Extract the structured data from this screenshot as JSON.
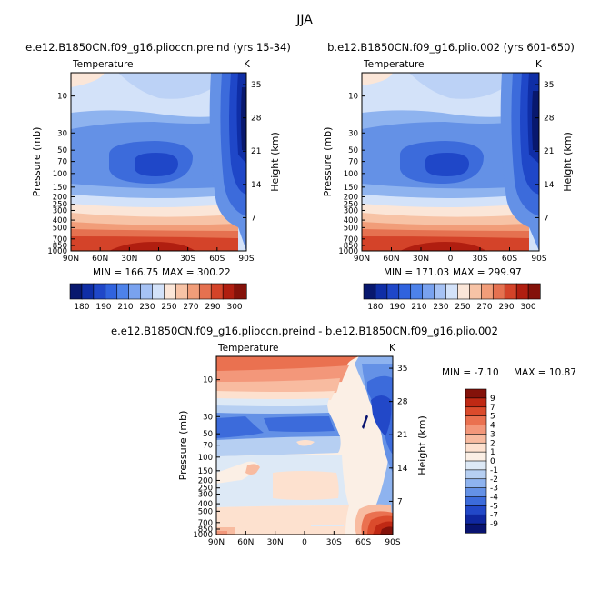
{
  "figure": {
    "season": "JJA",
    "variable": "Temperature",
    "units": "K"
  },
  "chart_data": [
    {
      "type": "heatmap",
      "id": "left",
      "title": "e.e12.B1850CN.f09_g16.plioccn.preind (yrs 15-34)",
      "variable": "Temperature",
      "units": "K",
      "ylabel": "Pressure (mb)",
      "ylabel_right": "Height (km)",
      "x_ticks": [
        "90N",
        "60N",
        "30N",
        "0",
        "30S",
        "60S",
        "90S"
      ],
      "y_ticks": [
        "10",
        "30",
        "50",
        "70",
        "100",
        "150",
        "200",
        "250",
        "300",
        "400",
        "500",
        "700",
        "850",
        "1000"
      ],
      "y_tick_values": [
        10,
        30,
        50,
        70,
        100,
        150,
        200,
        250,
        300,
        400,
        500,
        700,
        850,
        1000
      ],
      "y_ticks_right": [
        "35",
        "28",
        "21",
        "14",
        "7"
      ],
      "y_ticks_right_values": [
        35,
        28,
        21,
        14,
        7
      ],
      "ylim": [
        5,
        1000
      ],
      "xlim": [
        90,
        -90
      ],
      "min_label": "MIN = 166.75",
      "max_label": "MAX = 300.22",
      "colorbar": {
        "levels": [
          170,
          180,
          190,
          200,
          210,
          220,
          230,
          240,
          250,
          260,
          270,
          280,
          290,
          300
        ],
        "labels": [
          "180",
          "190",
          "210",
          "230",
          "250",
          "270",
          "290",
          "300"
        ],
        "colors": [
          "#08186e",
          "#0f2ea6",
          "#1f47c8",
          "#3063de",
          "#4d82ea",
          "#79a2ef",
          "#a6c2f4",
          "#d3e2f9",
          "#fbe6d8",
          "#f7c3a6",
          "#f19d79",
          "#e57150",
          "#d44329",
          "#b01e10",
          "#84120a"
        ]
      }
    },
    {
      "type": "heatmap",
      "id": "right",
      "title": "b.e12.B1850CN.f09_g16.plio.002 (yrs 601-650)",
      "variable": "Temperature",
      "units": "K",
      "ylabel": "Pressure (mb)",
      "ylabel_right": "Height (km)",
      "x_ticks": [
        "90N",
        "60N",
        "30N",
        "0",
        "30S",
        "60S",
        "90S"
      ],
      "y_ticks": [
        "10",
        "30",
        "50",
        "70",
        "100",
        "150",
        "200",
        "250",
        "300",
        "400",
        "500",
        "700",
        "850",
        "1000"
      ],
      "y_tick_values": [
        10,
        30,
        50,
        70,
        100,
        150,
        200,
        250,
        300,
        400,
        500,
        700,
        850,
        1000
      ],
      "y_ticks_right": [
        "35",
        "28",
        "21",
        "14",
        "7"
      ],
      "y_ticks_right_values": [
        35,
        28,
        21,
        14,
        7
      ],
      "ylim": [
        5,
        1000
      ],
      "xlim": [
        90,
        -90
      ],
      "min_label": "MIN = 171.03",
      "max_label": "MAX = 299.97",
      "colorbar": {
        "levels": [
          170,
          180,
          190,
          200,
          210,
          220,
          230,
          240,
          250,
          260,
          270,
          280,
          290,
          300
        ],
        "labels": [
          "180",
          "190",
          "210",
          "230",
          "250",
          "270",
          "290",
          "300"
        ],
        "colors": [
          "#08186e",
          "#0f2ea6",
          "#1f47c8",
          "#3063de",
          "#4d82ea",
          "#79a2ef",
          "#a6c2f4",
          "#d3e2f9",
          "#fbe6d8",
          "#f7c3a6",
          "#f19d79",
          "#e57150",
          "#d44329",
          "#b01e10",
          "#84120a"
        ]
      }
    },
    {
      "type": "heatmap",
      "id": "diff",
      "title": "e.e12.B1850CN.f09_g16.plioccn.preind - b.e12.B1850CN.f09_g16.plio.002",
      "variable": "Temperature",
      "units": "K",
      "ylabel": "Pressure (mb)",
      "ylabel_right": "Height (km)",
      "x_ticks": [
        "90N",
        "60N",
        "30N",
        "0",
        "30S",
        "60S",
        "90S"
      ],
      "y_ticks": [
        "10",
        "30",
        "50",
        "70",
        "100",
        "150",
        "200",
        "250",
        "300",
        "400",
        "500",
        "700",
        "850",
        "1000"
      ],
      "y_tick_values": [
        10,
        30,
        50,
        70,
        100,
        150,
        200,
        250,
        300,
        400,
        500,
        700,
        850,
        1000
      ],
      "y_ticks_right": [
        "35",
        "28",
        "21",
        "14",
        "7"
      ],
      "y_ticks_right_values": [
        35,
        28,
        21,
        14,
        7
      ],
      "ylim": [
        5,
        1000
      ],
      "xlim": [
        90,
        -90
      ],
      "min_label": "MIN = -7.10",
      "max_label": "MAX = 10.87",
      "colorbar": {
        "labels": [
          "9",
          "7",
          "5",
          "4",
          "3",
          "2",
          "1",
          "0",
          "-1",
          "-2",
          "-3",
          "-4",
          "-5",
          "-7",
          "-9"
        ],
        "colors": [
          "#84120a",
          "#c02914",
          "#db4b2c",
          "#ea7150",
          "#f3977a",
          "#f8bba0",
          "#fde1cf",
          "#fbefe5",
          "#dde9f6",
          "#b6cff2",
          "#8eb3ef",
          "#6491e6",
          "#3c6bdb",
          "#2248c8",
          "#0f27a0",
          "#081370"
        ]
      }
    }
  ]
}
